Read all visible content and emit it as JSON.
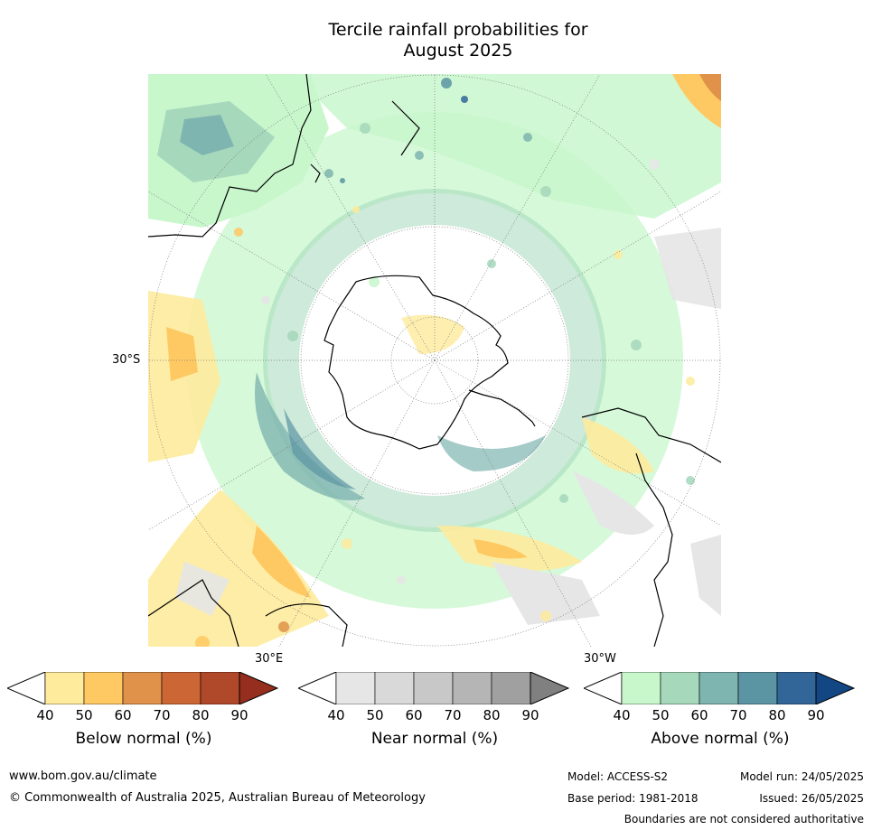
{
  "title_line1": "Tercile rainfall probabilities for",
  "title_line2": "August 2025",
  "map": {
    "projection": "south polar stereographic",
    "lat_label": "30°S",
    "lon_labels": [
      "30°E",
      "30°W"
    ]
  },
  "colorbars": [
    {
      "label": "Below normal (%)",
      "ticks": [
        "40",
        "50",
        "60",
        "70",
        "80",
        "90"
      ],
      "colors": [
        "#ffffff",
        "#feeb9c",
        "#fec962",
        "#e0924a",
        "#cc6634",
        "#b0482a",
        "#962e1e"
      ]
    },
    {
      "label": "Near normal (%)",
      "ticks": [
        "40",
        "50",
        "60",
        "70",
        "80",
        "90"
      ],
      "colors": [
        "#ffffff",
        "#e6e6e6",
        "#d9d9d9",
        "#c8c8c8",
        "#b5b5b5",
        "#a0a0a0",
        "#808080"
      ]
    },
    {
      "label": "Above normal (%)",
      "ticks": [
        "40",
        "50",
        "60",
        "70",
        "80",
        "90"
      ],
      "colors": [
        "#ffffff",
        "#c8f7cc",
        "#a6d8bc",
        "#7fb5b0",
        "#5b94a3",
        "#326598",
        "#124783"
      ]
    }
  ],
  "footer": {
    "url": "www.bom.gov.au/climate",
    "copyright": "© Commonwealth of Australia 2025, Australian Bureau of Meteorology",
    "model": "Model: ACCESS-S2",
    "base_period": "Base period: 1981-2018",
    "model_run": "Model run: 24/05/2025",
    "issued": "Issued: 26/05/2025",
    "disclaimer": "Boundaries are not considered authoritative"
  }
}
